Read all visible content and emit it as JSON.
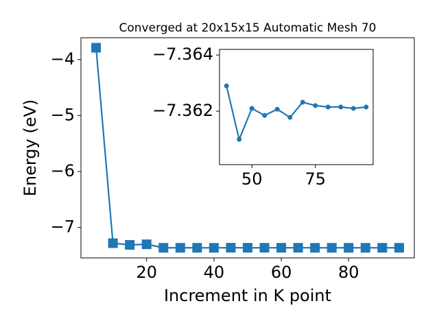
{
  "chart_data": [
    {
      "type": "line",
      "title": "Converged at 20x15x15 Automatic Mesh 70",
      "x_label": "Increment in K point",
      "y_label": "Energy (eV)",
      "x": [
        5,
        10,
        15,
        20,
        25,
        30,
        35,
        40,
        45,
        50,
        55,
        60,
        65,
        70,
        75,
        80,
        85,
        90,
        95
      ],
      "series": [
        {
          "name": "Energy",
          "color": "#1f77b4",
          "marker": "square",
          "values": [
            -3.79,
            -7.28,
            -7.31,
            -7.3,
            -7.362,
            -7.3622,
            -7.3621,
            -7.3629,
            -7.361,
            -7.3621,
            -7.36185,
            -7.36207,
            -7.36178,
            -7.36232,
            -7.3622,
            -7.36215,
            -7.36215,
            -7.3621,
            -7.36215
          ]
        }
      ],
      "xlim": [
        0.5,
        99.5
      ],
      "ylim": [
        -7.543,
        -3.611
      ],
      "xticks": [
        20,
        40,
        60,
        80
      ],
      "yticks": [
        {
          "value": -7,
          "label": "−7"
        },
        {
          "value": -6,
          "label": "−6"
        },
        {
          "value": -5,
          "label": "−5"
        },
        {
          "value": -4,
          "label": "−4"
        }
      ]
    },
    {
      "type": "line",
      "x": [
        40,
        45,
        50,
        55,
        60,
        65,
        70,
        75,
        80,
        85,
        90,
        95
      ],
      "series": [
        {
          "name": "Energy",
          "color": "#1f77b4",
          "marker": "circle",
          "values": [
            -7.3629,
            -7.361,
            -7.3621,
            -7.36185,
            -7.36207,
            -7.36178,
            -7.36232,
            -7.3622,
            -7.36215,
            -7.36215,
            -7.3621,
            -7.36215
          ]
        }
      ],
      "xlim": [
        37.25,
        97.75
      ],
      "ylim": [
        -7.3601,
        -7.3642
      ],
      "xticks": [
        50,
        75
      ],
      "yticks": [
        {
          "value": -7.364,
          "label": "−7.364"
        },
        {
          "value": -7.362,
          "label": "−7.362"
        }
      ]
    }
  ]
}
